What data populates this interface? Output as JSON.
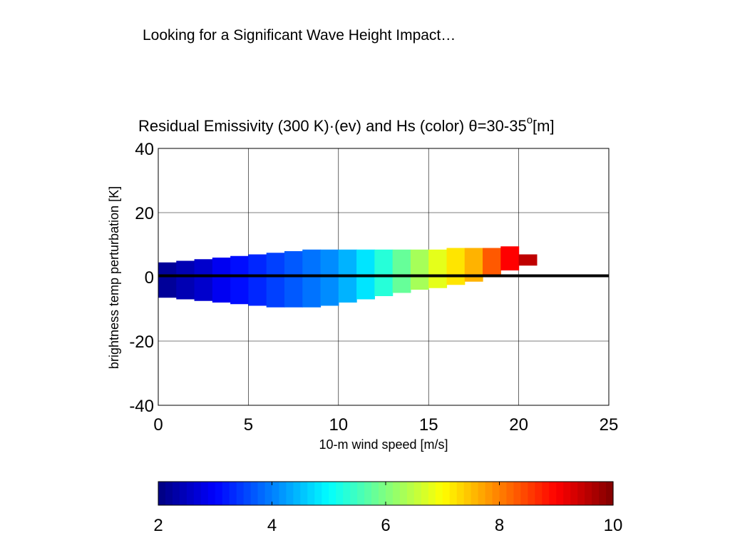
{
  "slide": {
    "title": "Looking for a Significant Wave Height Impact…"
  },
  "chart_data": {
    "type": "scatter",
    "title": "Residual Emissivity (300 K)·(ev) and Hs (color) θ=30-35",
    "title_superscript": "o",
    "title_suffix": "[m]",
    "xlabel": "10-m wind speed [m/s]",
    "ylabel": "brightness temp perturbation [K]",
    "xlim": [
      0,
      25
    ],
    "ylim": [
      -40,
      40
    ],
    "xticks": [
      "0",
      "5",
      "10",
      "15",
      "20",
      "25"
    ],
    "yticks": [
      "40",
      "20",
      "0",
      "-20",
      "-40"
    ],
    "grid": true,
    "reference_line_y": 0,
    "envelope": {
      "wind_speed": [
        0.5,
        1.5,
        2.5,
        3.5,
        4.5,
        5.5,
        6.5,
        7.5,
        8.5,
        9.5,
        10.5,
        11.5,
        12.5,
        13.5,
        14.5,
        15.5,
        16.5,
        17.5,
        18.5,
        19.5,
        20.5
      ],
      "upper_K": [
        4.5,
        5,
        5.5,
        6,
        6.5,
        7,
        7.5,
        8,
        8.5,
        8.5,
        8.5,
        8.5,
        8.5,
        8.5,
        8.5,
        8.5,
        9,
        9,
        9,
        9.5,
        7
      ],
      "lower_K": [
        -6.5,
        -7,
        -7.5,
        -8,
        -8.5,
        -9,
        -9.5,
        -9.5,
        -9.5,
        -9,
        -8,
        -7,
        -6,
        -5,
        -4,
        -3.5,
        -2.5,
        -1.5,
        0,
        2,
        3.5
      ],
      "hs_m": [
        2.2,
        2.4,
        2.6,
        2.9,
        3.1,
        3.3,
        3.5,
        3.7,
        3.9,
        4.1,
        4.4,
        4.8,
        5.3,
        5.8,
        6.3,
        6.8,
        7.2,
        7.6,
        8.3,
        9.0,
        9.5
      ]
    },
    "colorbar": {
      "colormap": "jet",
      "min": 2,
      "max": 10,
      "ticks": [
        "2",
        "4",
        "6",
        "8",
        "10"
      ],
      "orientation": "horizontal"
    }
  }
}
